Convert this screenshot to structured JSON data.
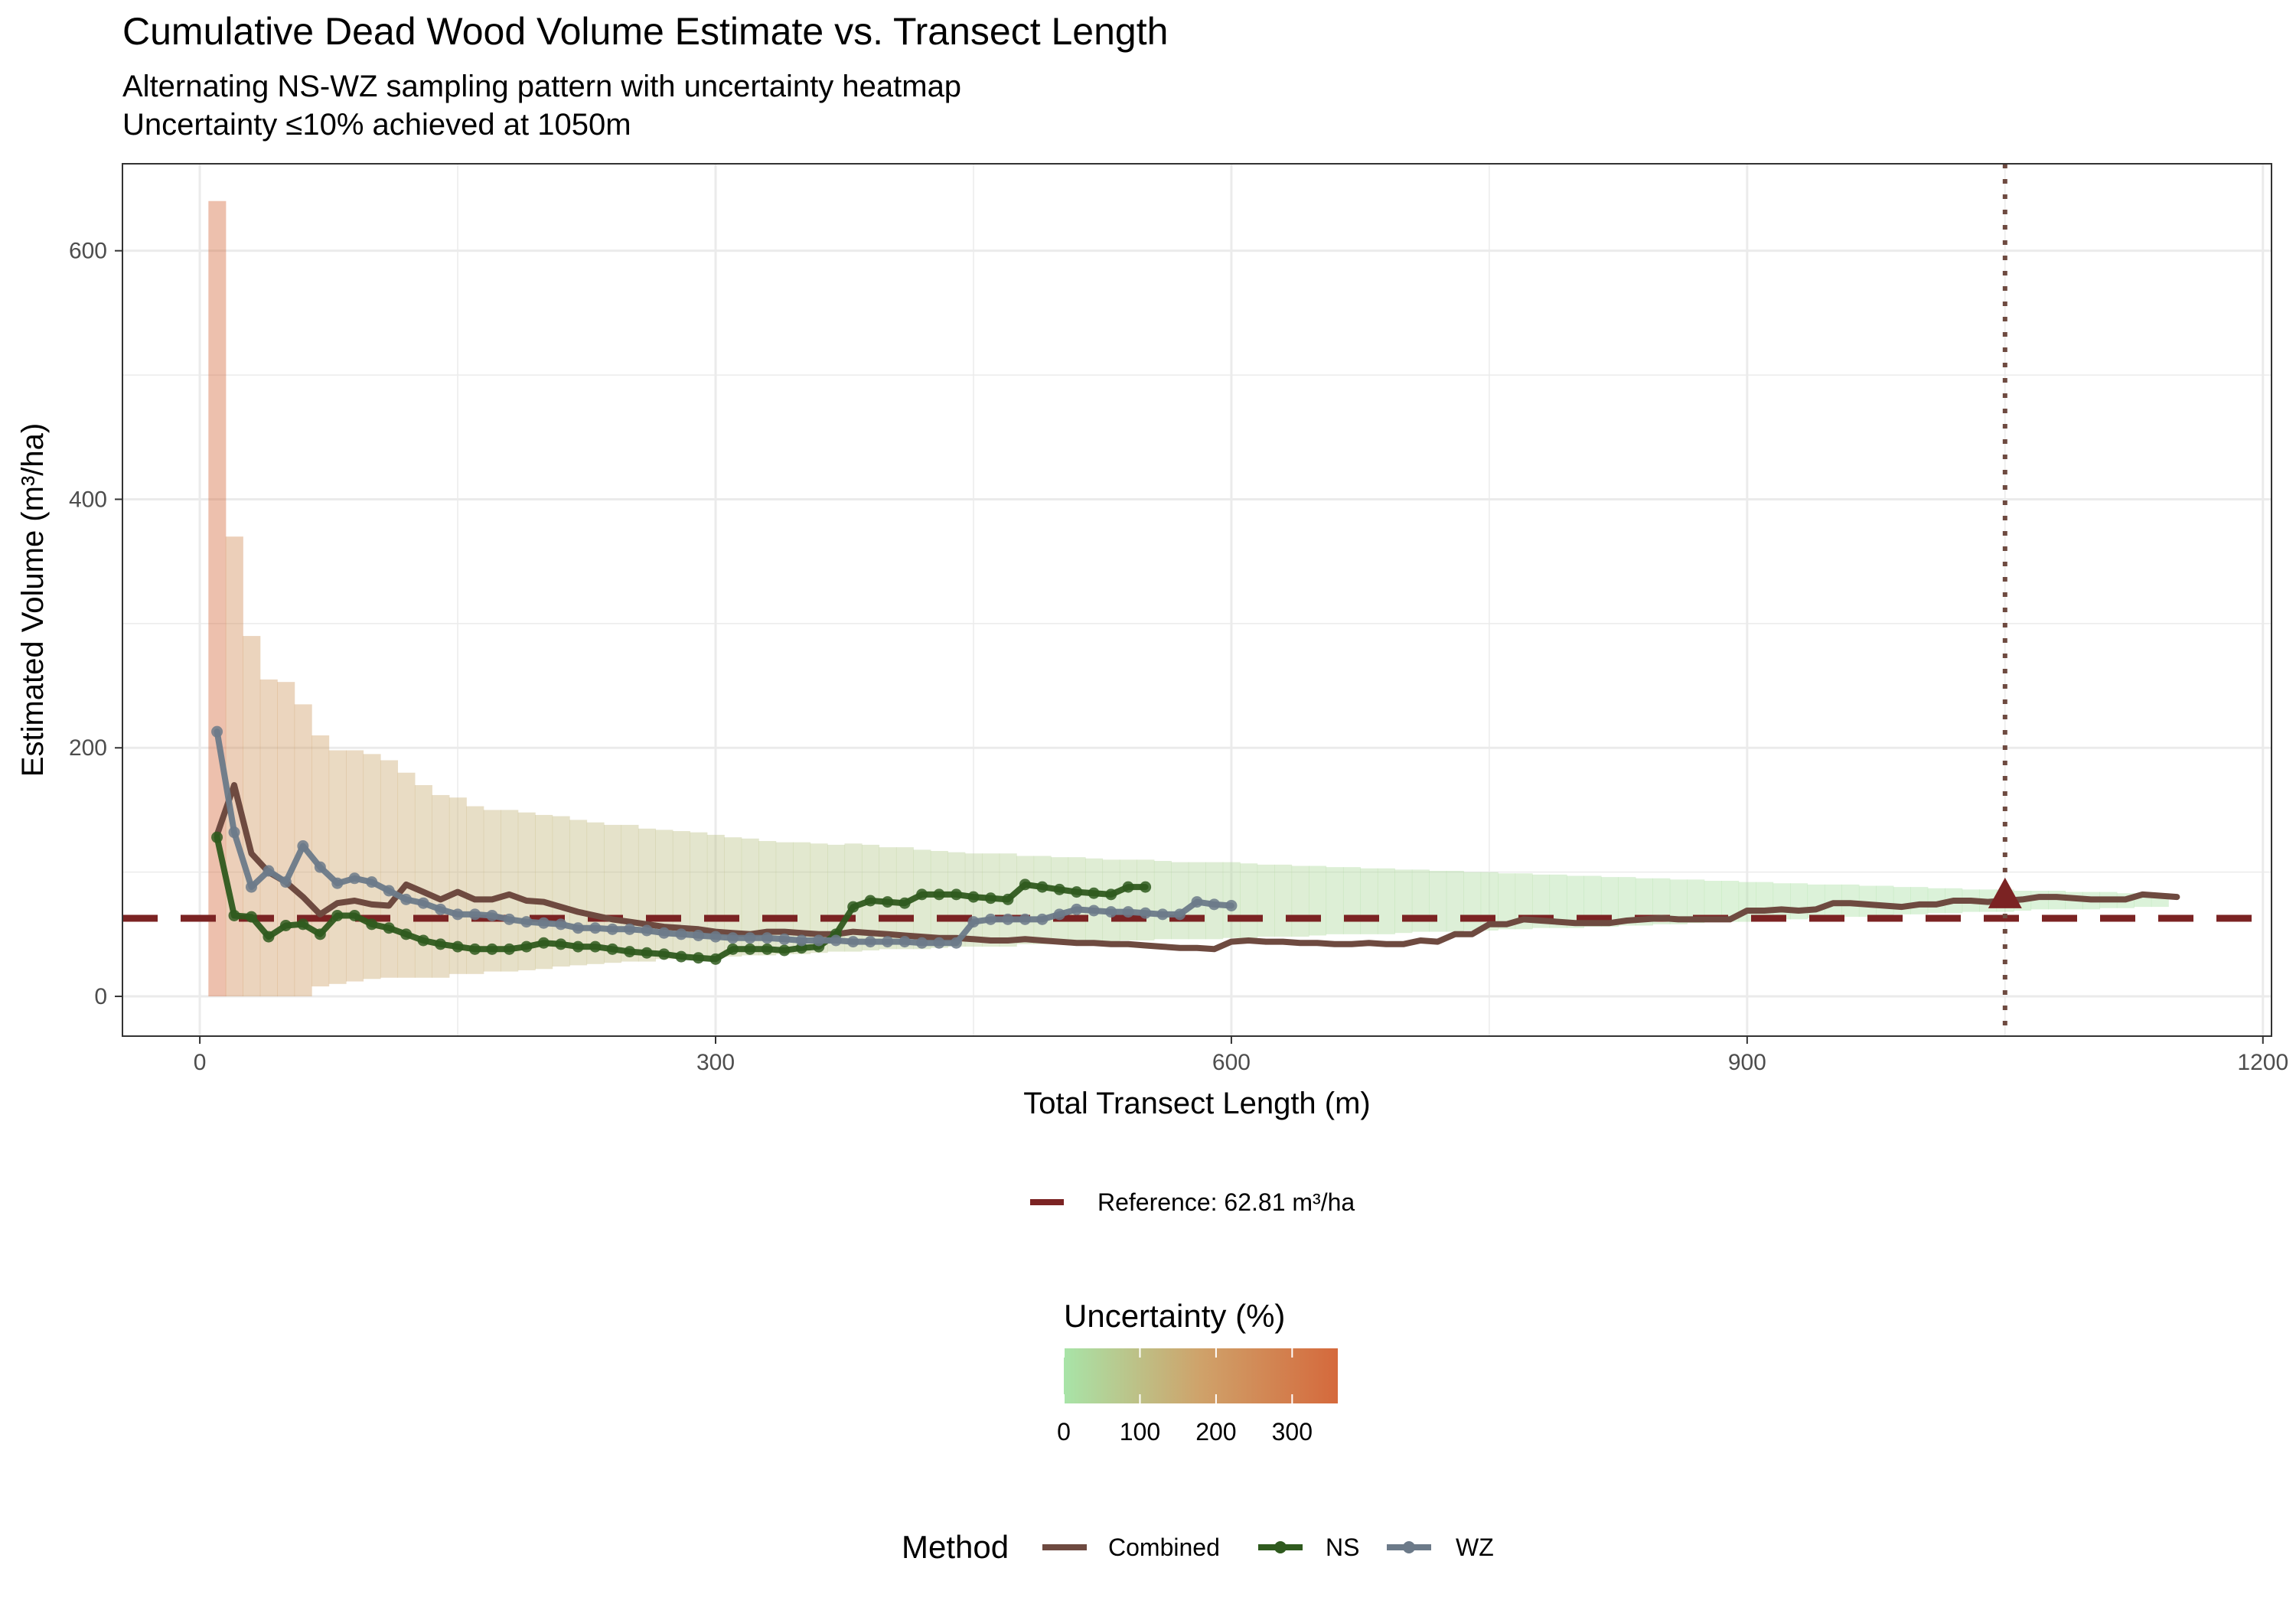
{
  "title": "Cumulative Dead Wood Volume Estimate vs. Transect Length",
  "subtitle_lines": [
    "Alternating NS-WZ sampling pattern with uncertainty heatmap",
    "Uncertainty ≤10% achieved at 1050m"
  ],
  "chart_data": {
    "type": "line",
    "title": "Cumulative Dead Wood Volume Estimate vs. Transect Length",
    "xlabel": "Total Transect Length (m)",
    "ylabel": "Estimated Volume (m³/ha)",
    "xlim": [
      -45,
      1205
    ],
    "ylim": [
      -32,
      670
    ],
    "x_ticks": [
      0,
      300,
      600,
      900,
      1200
    ],
    "y_ticks": [
      0,
      200,
      400,
      600
    ],
    "grid": true,
    "reference": {
      "value": 62.81,
      "label": "Reference: 62.81 m³/ha",
      "color": "#7b2323"
    },
    "threshold_marker": {
      "x": 1050,
      "y": 82,
      "color": "#7b2323",
      "line_color": "#6e4a40"
    },
    "uncertainty_band": {
      "legend_title": "Uncertainty (%)",
      "scale_ticks": [
        0,
        100,
        200,
        300
      ],
      "scale_range": [
        0,
        360
      ],
      "colors": [
        "#a8e4a8",
        "#cfa26a",
        "#d5693c"
      ],
      "x": [
        10,
        20,
        30,
        40,
        50,
        60,
        70,
        80,
        90,
        100,
        110,
        120,
        130,
        140,
        150,
        160,
        170,
        180,
        190,
        200,
        210,
        220,
        230,
        240,
        250,
        260,
        270,
        280,
        290,
        300,
        310,
        320,
        330,
        340,
        350,
        360,
        370,
        380,
        390,
        400,
        410,
        420,
        430,
        440,
        450,
        460,
        470,
        480,
        490,
        500,
        510,
        520,
        530,
        540,
        550,
        560,
        570,
        580,
        590,
        600,
        610,
        620,
        630,
        640,
        650,
        660,
        670,
        680,
        690,
        700,
        710,
        720,
        730,
        740,
        750,
        760,
        770,
        780,
        790,
        800,
        810,
        820,
        830,
        840,
        850,
        860,
        870,
        880,
        890,
        900,
        910,
        920,
        930,
        940,
        950,
        960,
        970,
        980,
        990,
        1000,
        1010,
        1020,
        1030,
        1040,
        1050,
        1060,
        1070,
        1080,
        1090,
        1100,
        1110,
        1120,
        1130,
        1140
      ],
      "lower": [
        0,
        0,
        0,
        0,
        0,
        0,
        8,
        10,
        12,
        14,
        15,
        15,
        15,
        15,
        18,
        18,
        20,
        20,
        21,
        22,
        24,
        25,
        26,
        27,
        28,
        28,
        30,
        30,
        31,
        32,
        32,
        33,
        33,
        34,
        34,
        35,
        36,
        36,
        37,
        38,
        38,
        38,
        39,
        40,
        40,
        40,
        40,
        42,
        42,
        43,
        44,
        44,
        44,
        45,
        45,
        46,
        46,
        46,
        46,
        47,
        47,
        48,
        48,
        48,
        49,
        50,
        50,
        50,
        50,
        51,
        52,
        52,
        52,
        53,
        53,
        54,
        54,
        55,
        55,
        55,
        56,
        56,
        57,
        57,
        58,
        58,
        59,
        60,
        60,
        60,
        61,
        62,
        62,
        63,
        63,
        64,
        64,
        65,
        66,
        66,
        67,
        67,
        68,
        68,
        68,
        69,
        70,
        70,
        70,
        70,
        71,
        71,
        72,
        72
      ],
      "upper": [
        640,
        370,
        290,
        255,
        253,
        235,
        210,
        198,
        198,
        195,
        190,
        180,
        170,
        162,
        160,
        153,
        150,
        150,
        148,
        146,
        145,
        142,
        140,
        138,
        138,
        135,
        134,
        133,
        132,
        130,
        128,
        127,
        125,
        124,
        124,
        123,
        122,
        123,
        122,
        120,
        120,
        118,
        117,
        116,
        115,
        115,
        115,
        113,
        113,
        112,
        112,
        111,
        110,
        110,
        110,
        109,
        108,
        108,
        108,
        108,
        107,
        106,
        106,
        105,
        105,
        104,
        104,
        103,
        103,
        102,
        102,
        101,
        101,
        100,
        100,
        99,
        99,
        98,
        98,
        97,
        97,
        96,
        96,
        95,
        95,
        94,
        94,
        93,
        93,
        92,
        92,
        91,
        91,
        90,
        90,
        90,
        89,
        89,
        88,
        88,
        87,
        87,
        86,
        86,
        86,
        85,
        85,
        85,
        84,
        84,
        84,
        83,
        83,
        83
      ],
      "uncertainty": [
        360,
        250,
        210,
        200,
        200,
        195,
        180,
        170,
        165,
        160,
        158,
        155,
        150,
        146,
        142,
        138,
        134,
        130,
        127,
        124,
        121,
        118,
        115,
        112,
        109,
        106,
        103,
        100,
        97,
        94,
        91,
        88,
        85,
        82,
        80,
        78,
        76,
        74,
        72,
        70,
        68,
        66,
        64,
        62,
        60,
        58,
        56,
        54,
        52,
        50,
        48,
        47,
        46,
        45,
        44,
        43,
        42,
        41,
        40,
        39,
        38,
        37,
        36,
        35,
        34,
        33,
        32,
        31,
        30,
        29,
        28,
        27,
        26,
        25,
        24,
        23,
        22,
        21,
        20,
        19,
        19,
        18,
        18,
        17,
        17,
        16,
        16,
        15,
        15,
        14,
        14,
        13,
        13,
        13,
        12,
        12,
        12,
        11,
        11,
        11,
        11,
        10,
        10,
        10,
        10,
        10,
        9,
        9,
        9,
        9,
        9,
        9,
        9,
        9
      ]
    },
    "series": [
      {
        "name": "Combined",
        "color": "#6e4a40",
        "markers": false,
        "x": [
          10,
          20,
          30,
          40,
          50,
          60,
          70,
          80,
          90,
          100,
          110,
          120,
          130,
          140,
          150,
          160,
          170,
          180,
          190,
          200,
          210,
          220,
          230,
          240,
          250,
          260,
          270,
          280,
          290,
          300,
          310,
          320,
          330,
          340,
          350,
          360,
          370,
          380,
          390,
          400,
          410,
          420,
          430,
          440,
          450,
          460,
          470,
          480,
          490,
          500,
          510,
          520,
          530,
          540,
          550,
          560,
          570,
          580,
          590,
          600,
          610,
          620,
          630,
          640,
          650,
          660,
          670,
          680,
          690,
          700,
          710,
          720,
          730,
          740,
          750,
          760,
          770,
          780,
          790,
          800,
          810,
          820,
          830,
          840,
          850,
          860,
          870,
          880,
          890,
          900,
          910,
          920,
          930,
          940,
          950,
          960,
          970,
          980,
          990,
          1000,
          1010,
          1020,
          1030,
          1040,
          1050,
          1060,
          1070,
          1080,
          1090,
          1100,
          1110,
          1120,
          1130,
          1140,
          1150
        ],
        "y": [
          130,
          170,
          115,
          100,
          92,
          80,
          66,
          75,
          77,
          74,
          73,
          90,
          84,
          78,
          84,
          78,
          78,
          82,
          77,
          76,
          72,
          68,
          65,
          62,
          60,
          58,
          56,
          55,
          54,
          52,
          51,
          50,
          52,
          52,
          51,
          50,
          50,
          52,
          51,
          50,
          49,
          48,
          47,
          47,
          46,
          45,
          45,
          46,
          45,
          44,
          43,
          43,
          42,
          42,
          41,
          40,
          39,
          39,
          38,
          44,
          45,
          44,
          44,
          43,
          43,
          42,
          42,
          43,
          42,
          42,
          45,
          44,
          50,
          50,
          58,
          58,
          62,
          61,
          60,
          59,
          59,
          59,
          61,
          62,
          63,
          62,
          62,
          62,
          62,
          69,
          69,
          70,
          69,
          70,
          75,
          75,
          74,
          73,
          72,
          74,
          74,
          77,
          77,
          76,
          77,
          78,
          80,
          80,
          79,
          78,
          78,
          78,
          82,
          81,
          80
        ]
      },
      {
        "name": "NS",
        "color": "#2f5a1e",
        "markers": true,
        "x": [
          10,
          20,
          30,
          40,
          50,
          60,
          70,
          80,
          90,
          100,
          110,
          120,
          130,
          140,
          150,
          160,
          170,
          180,
          190,
          200,
          210,
          220,
          230,
          240,
          250,
          260,
          270,
          280,
          290,
          300,
          310,
          320,
          330,
          340,
          350,
          360,
          370,
          380,
          390,
          400,
          410,
          420,
          430,
          440,
          450,
          460,
          470,
          480,
          490,
          500,
          510,
          520,
          530,
          540,
          550
        ],
        "y": [
          128,
          65,
          64,
          48,
          57,
          58,
          50,
          65,
          65,
          58,
          55,
          50,
          45,
          42,
          40,
          38,
          38,
          38,
          40,
          43,
          42,
          40,
          40,
          38,
          36,
          35,
          34,
          32,
          31,
          30,
          38,
          38,
          38,
          37,
          39,
          40,
          50,
          72,
          77,
          76,
          75,
          82,
          82,
          82,
          80,
          79,
          78,
          90,
          88,
          86,
          84,
          83,
          82,
          88,
          88
        ]
      },
      {
        "name": "WZ",
        "color": "#6c7a89",
        "markers": true,
        "x": [
          10,
          20,
          30,
          40,
          50,
          60,
          70,
          80,
          90,
          100,
          110,
          120,
          130,
          140,
          150,
          160,
          170,
          180,
          190,
          200,
          210,
          220,
          230,
          240,
          250,
          260,
          270,
          280,
          290,
          300,
          310,
          320,
          330,
          340,
          350,
          360,
          370,
          380,
          390,
          400,
          410,
          420,
          430,
          440,
          450,
          460,
          470,
          480,
          490,
          500,
          510,
          520,
          530,
          540,
          550,
          560,
          570,
          580,
          590,
          600
        ],
        "y": [
          213,
          132,
          88,
          101,
          92,
          121,
          104,
          91,
          95,
          92,
          85,
          78,
          75,
          70,
          66,
          66,
          65,
          62,
          60,
          59,
          58,
          55,
          55,
          54,
          54,
          53,
          51,
          50,
          49,
          48,
          47,
          47,
          47,
          46,
          45,
          45,
          45,
          44,
          44,
          44,
          44,
          43,
          43,
          43,
          60,
          62,
          62,
          62,
          62,
          66,
          70,
          69,
          68,
          68,
          67,
          66,
          66,
          76,
          74,
          73
        ]
      }
    ],
    "legend": {
      "placement": "bottom",
      "method_title": "Method"
    }
  }
}
